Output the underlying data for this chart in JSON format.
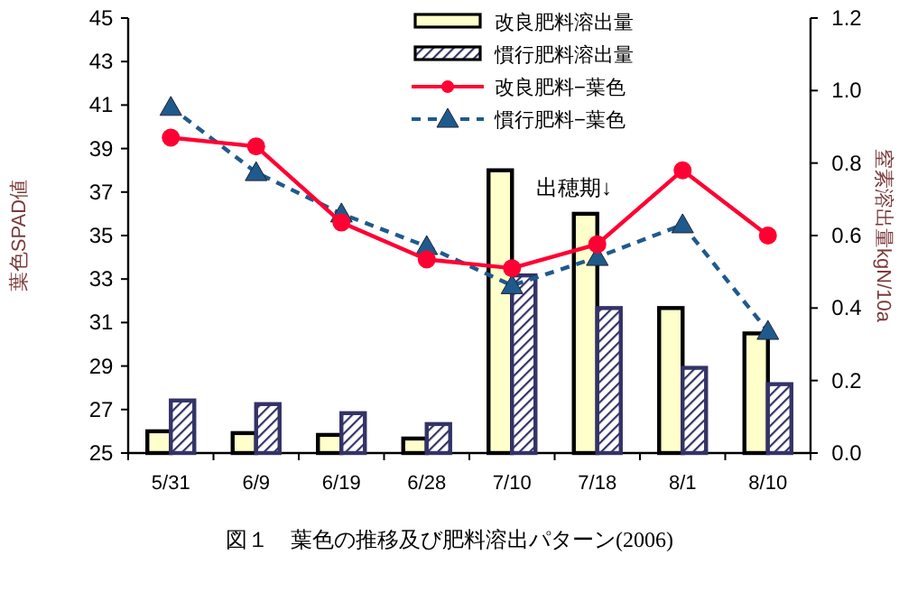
{
  "chart_data": {
    "type": "bar",
    "title": "図１　葉色の推移及び肥料溶出パターン(2006)",
    "ylabel": "葉色SPAD値",
    "y2label": "窒素溶出量kgN/10a",
    "categories": [
      "5/31",
      "6/9",
      "6/19",
      "6/28",
      "7/10",
      "7/18",
      "8/1",
      "8/10"
    ],
    "series": [
      {
        "name": "改良肥料溶出量",
        "axis": "y2",
        "color": "#ffffcc",
        "values": [
          0.06,
          0.055,
          0.05,
          0.04,
          0.78,
          0.66,
          0.4,
          0.33
        ]
      },
      {
        "name": "慣行肥料溶出量",
        "axis": "y2",
        "color": "#333366",
        "values": [
          0.145,
          0.135,
          0.11,
          0.08,
          0.49,
          0.4,
          0.235,
          0.19
        ]
      },
      {
        "name": "改良肥料−葉色",
        "type": "line",
        "color": "#ff0033",
        "marker": "circle",
        "line_style": "solid",
        "values": [
          39.5,
          39.1,
          35.6,
          33.9,
          33.5,
          34.6,
          38.0,
          35.0
        ]
      },
      {
        "name": "慣行肥料−葉色",
        "type": "line",
        "color": "#1f5a8c",
        "marker": "triangle",
        "line_style": "dashed",
        "values": [
          40.9,
          37.9,
          36.0,
          34.5,
          32.7,
          34.0,
          35.5,
          30.6
        ]
      }
    ],
    "ylim": [
      25,
      45
    ],
    "yticks": [
      25,
      27,
      29,
      31,
      33,
      35,
      37,
      39,
      41,
      43,
      45
    ],
    "y2lim": [
      0,
      1.2
    ],
    "y2ticks": [
      {
        "value": 0,
        "label": "0.0"
      },
      0.2,
      0.4,
      0.6,
      0.8,
      {
        "value": 1,
        "label": "1.0"
      },
      1.2
    ],
    "annotations": [
      "出穂期↓"
    ],
    "legend": "top right",
    "grid": false
  }
}
